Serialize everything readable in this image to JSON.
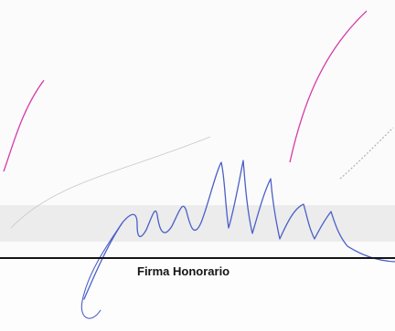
{
  "signature_block": {
    "caption": "Firma Honorario"
  },
  "colors": {
    "ink": "#141414",
    "signature_ink": "#4a5fc8",
    "magenta_stroke": "#d63aa8",
    "band": "#ececec"
  }
}
